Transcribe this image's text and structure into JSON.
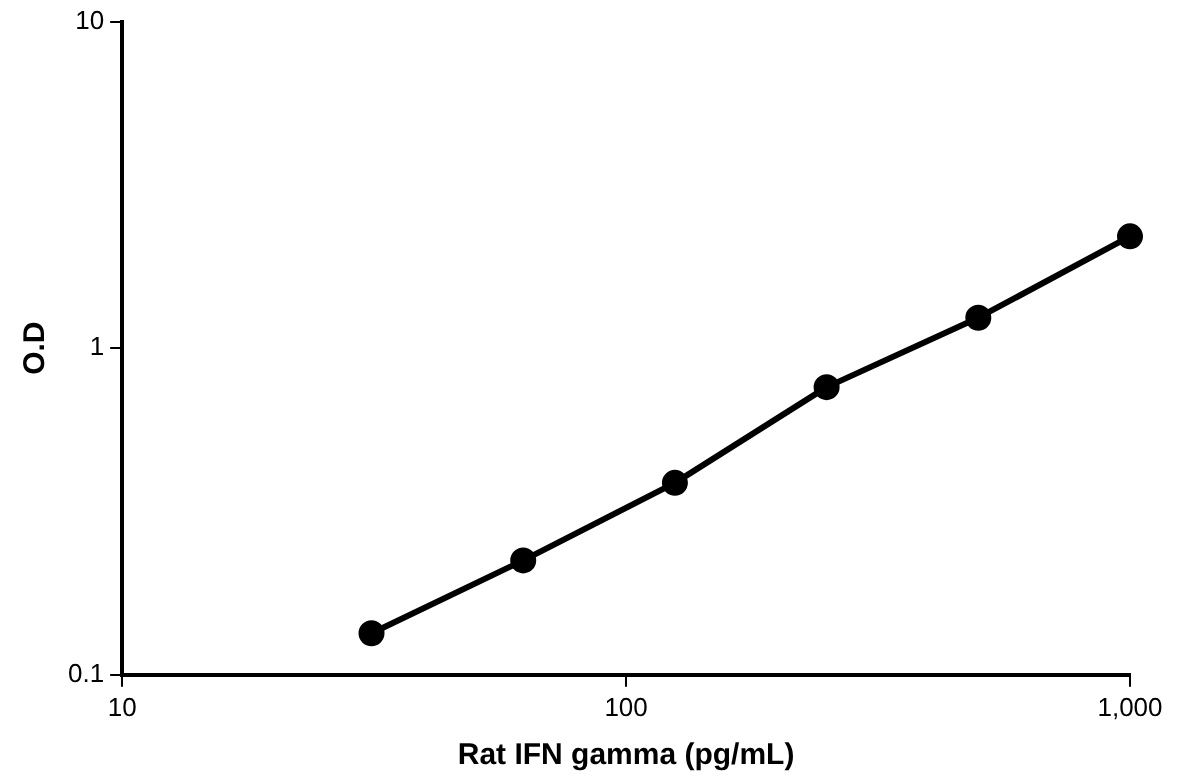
{
  "chart_data": {
    "type": "line",
    "xlabel": "Rat IFN gamma (pg/mL)",
    "ylabel": "O.D",
    "x": [
      31.25,
      62.5,
      125,
      250,
      500,
      1000
    ],
    "series": [
      {
        "color": "#000000",
        "values": [
          0.134,
          0.224,
          0.387,
          0.76,
          1.24,
          2.2
        ]
      }
    ],
    "log": "xy",
    "xlim": [
      10,
      1000
    ],
    "ylim": [
      0.1,
      10
    ],
    "xticks": [
      10,
      100,
      {
        "value": 1000,
        "label": "1,000"
      }
    ],
    "yticks": [
      0.1,
      1,
      10
    ],
    "grid": false,
    "legend": false,
    "marker": "circle",
    "line_style": "solid"
  }
}
